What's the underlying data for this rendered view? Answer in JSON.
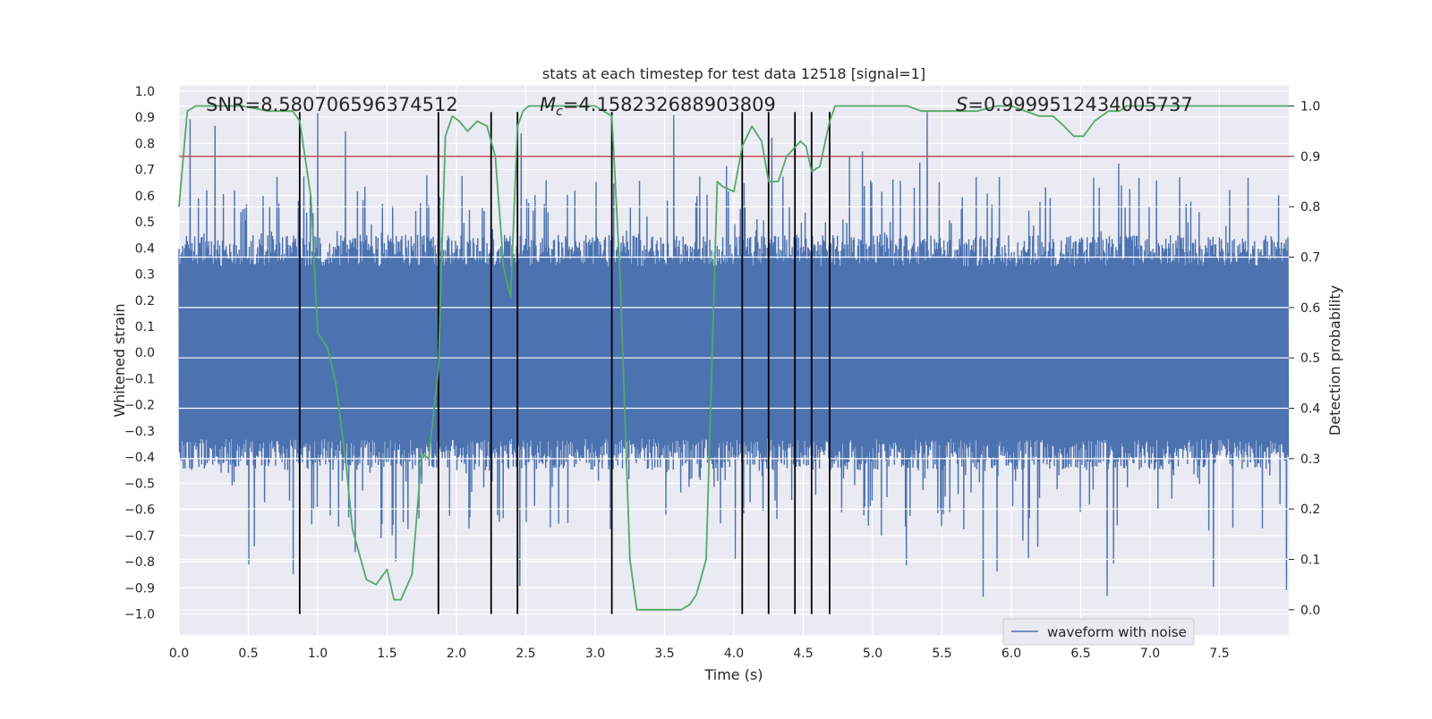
{
  "chart_data": {
    "type": "line",
    "title": "stats at each timestep for test data 12518 [signal=1]",
    "xlabel": "Time (s)",
    "ylabel_left": "Whitened strain",
    "ylabel_right": "Detection probability",
    "xlim": [
      0.0,
      8.0
    ],
    "ylim_left": [
      -1.08,
      1.02
    ],
    "ylim_right": [
      -0.05,
      1.04
    ],
    "x_ticks": [
      "0.0",
      "0.5",
      "1.0",
      "1.5",
      "2.0",
      "2.5",
      "3.0",
      "3.5",
      "4.0",
      "4.5",
      "5.0",
      "5.5",
      "6.0",
      "6.5",
      "7.0",
      "7.5"
    ],
    "y_ticks_left": [
      "1.0",
      "0.9",
      "0.8",
      "0.7",
      "0.6",
      "0.5",
      "0.4",
      "0.3",
      "0.2",
      "0.1",
      "0.0",
      "−0.1",
      "−0.2",
      "−0.3",
      "−0.4",
      "−0.5",
      "−0.6",
      "−0.7",
      "−0.8",
      "−0.9",
      "−1.0"
    ],
    "y_ticks_right": [
      "1.0",
      "0.9",
      "0.8",
      "0.7",
      "0.6",
      "0.5",
      "0.4",
      "0.3",
      "0.2",
      "0.1",
      "0.0"
    ],
    "annotations": {
      "snr": "SNR=8.580706596374512",
      "mc_symbol": "M",
      "mc_subscript": "c",
      "mc_value": "=4.158232688903809",
      "s_symbol": "S",
      "s_value": "=0.9999512434005737"
    },
    "legend": {
      "label": "waveform with noise",
      "location": "lower-right"
    },
    "threshold": {
      "value": 0.9,
      "axis": "right",
      "color": "#c44e52"
    },
    "event_lines": [
      0.87,
      1.87,
      2.25,
      2.44,
      3.12,
      4.06,
      4.25,
      4.44,
      4.56,
      4.69
    ],
    "series": [
      {
        "name": "waveform with noise",
        "axis": "left",
        "color": "#4c72b0",
        "style": "noise",
        "sample_rate": 300,
        "core_amplitude": 0.33,
        "max_positive": 0.92,
        "max_negative": -1.0
      },
      {
        "name": "Detection probability",
        "axis": "right",
        "color": "#55a868",
        "x": [
          0.0,
          0.06,
          0.12,
          0.25,
          0.45,
          0.65,
          0.82,
          0.87,
          0.95,
          1.0,
          1.07,
          1.13,
          1.2,
          1.25,
          1.35,
          1.42,
          1.5,
          1.55,
          1.6,
          1.68,
          1.75,
          1.8,
          1.87,
          1.92,
          1.97,
          2.02,
          2.08,
          2.15,
          2.22,
          2.28,
          2.34,
          2.39,
          2.44,
          2.48,
          2.52,
          2.57,
          2.62,
          2.7,
          3.0,
          3.12,
          3.18,
          3.25,
          3.3,
          3.35,
          3.45,
          3.55,
          3.62,
          3.68,
          3.73,
          3.8,
          3.88,
          3.92,
          4.0,
          4.06,
          4.13,
          4.2,
          4.25,
          4.32,
          4.38,
          4.48,
          4.52,
          4.56,
          4.62,
          4.69,
          4.73,
          4.8,
          4.9,
          5.0,
          5.25,
          5.35,
          5.5,
          5.6,
          5.75,
          5.9,
          6.0,
          6.2,
          6.3,
          6.38,
          6.45,
          6.52,
          6.6,
          6.7,
          6.78,
          6.83,
          6.9,
          7.0,
          7.2,
          7.4,
          7.55,
          7.65,
          8.0
        ],
        "y": [
          0.8,
          0.99,
          1.0,
          1.0,
          1.0,
          0.99,
          0.99,
          0.97,
          0.82,
          0.55,
          0.52,
          0.45,
          0.3,
          0.16,
          0.06,
          0.05,
          0.08,
          0.02,
          0.02,
          0.07,
          0.31,
          0.3,
          0.48,
          0.94,
          0.98,
          0.97,
          0.95,
          0.97,
          0.96,
          0.9,
          0.68,
          0.62,
          0.96,
          0.99,
          1.0,
          1.0,
          1.0,
          1.0,
          1.0,
          0.98,
          0.66,
          0.1,
          0.0,
          0.0,
          0.0,
          0.0,
          0.0,
          0.01,
          0.03,
          0.1,
          0.85,
          0.84,
          0.83,
          0.92,
          0.96,
          0.93,
          0.85,
          0.85,
          0.9,
          0.93,
          0.92,
          0.87,
          0.88,
          0.97,
          1.0,
          1.0,
          1.0,
          1.0,
          1.0,
          0.99,
          0.99,
          0.99,
          0.99,
          1.0,
          1.0,
          0.98,
          0.98,
          0.96,
          0.94,
          0.94,
          0.97,
          0.99,
          0.99,
          1.0,
          1.0,
          1.0,
          1.0,
          1.0,
          1.0,
          1.0,
          1.0
        ]
      }
    ]
  }
}
